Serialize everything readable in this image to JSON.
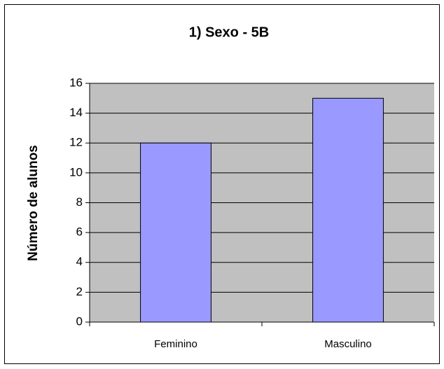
{
  "chart_data": {
    "type": "bar",
    "title": "1) Sexo - 5B",
    "y_label": "Número de alunos",
    "categories": [
      "Feminino",
      "Masculino"
    ],
    "values": [
      12,
      15
    ],
    "color": "#9999ff",
    "ylim": [
      0,
      16
    ],
    "yticks": [
      0,
      2,
      4,
      6,
      8,
      10,
      12,
      14,
      16
    ],
    "grid": true
  }
}
